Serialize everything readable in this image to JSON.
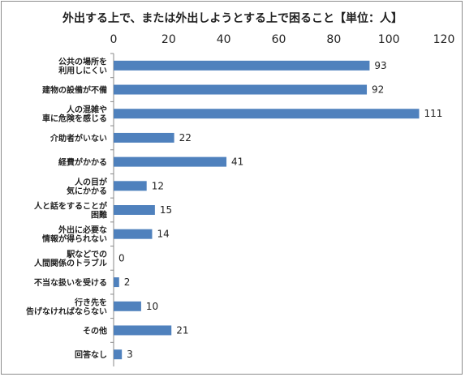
{
  "chart_data": {
    "type": "bar",
    "orientation": "horizontal",
    "title": "外出する上で、または外出しようとする上で困ること【単位：人】",
    "xlim": [
      0,
      120
    ],
    "ticks": [
      0,
      20,
      40,
      60,
      80,
      100,
      120
    ],
    "gridlines": false,
    "bar_color": "#4f81bd",
    "categories": [
      "公共の場所を\n利用しにくい",
      "建物の設備が不備",
      "人の混雑や\n車に危険を感じる",
      "介助者がいない",
      "経費がかかる",
      "人の目が\n気にかかる",
      "人と話をすることが\n困難",
      "外出に必要な\n情報が得られない",
      "駅などでの\n人間関係のトラブル",
      "不当な扱いを受ける",
      "行き先を\n告げなければならない",
      "その他",
      "回答なし"
    ],
    "values": [
      93,
      92,
      111,
      22,
      41,
      12,
      15,
      14,
      0,
      2,
      10,
      21,
      3
    ]
  }
}
